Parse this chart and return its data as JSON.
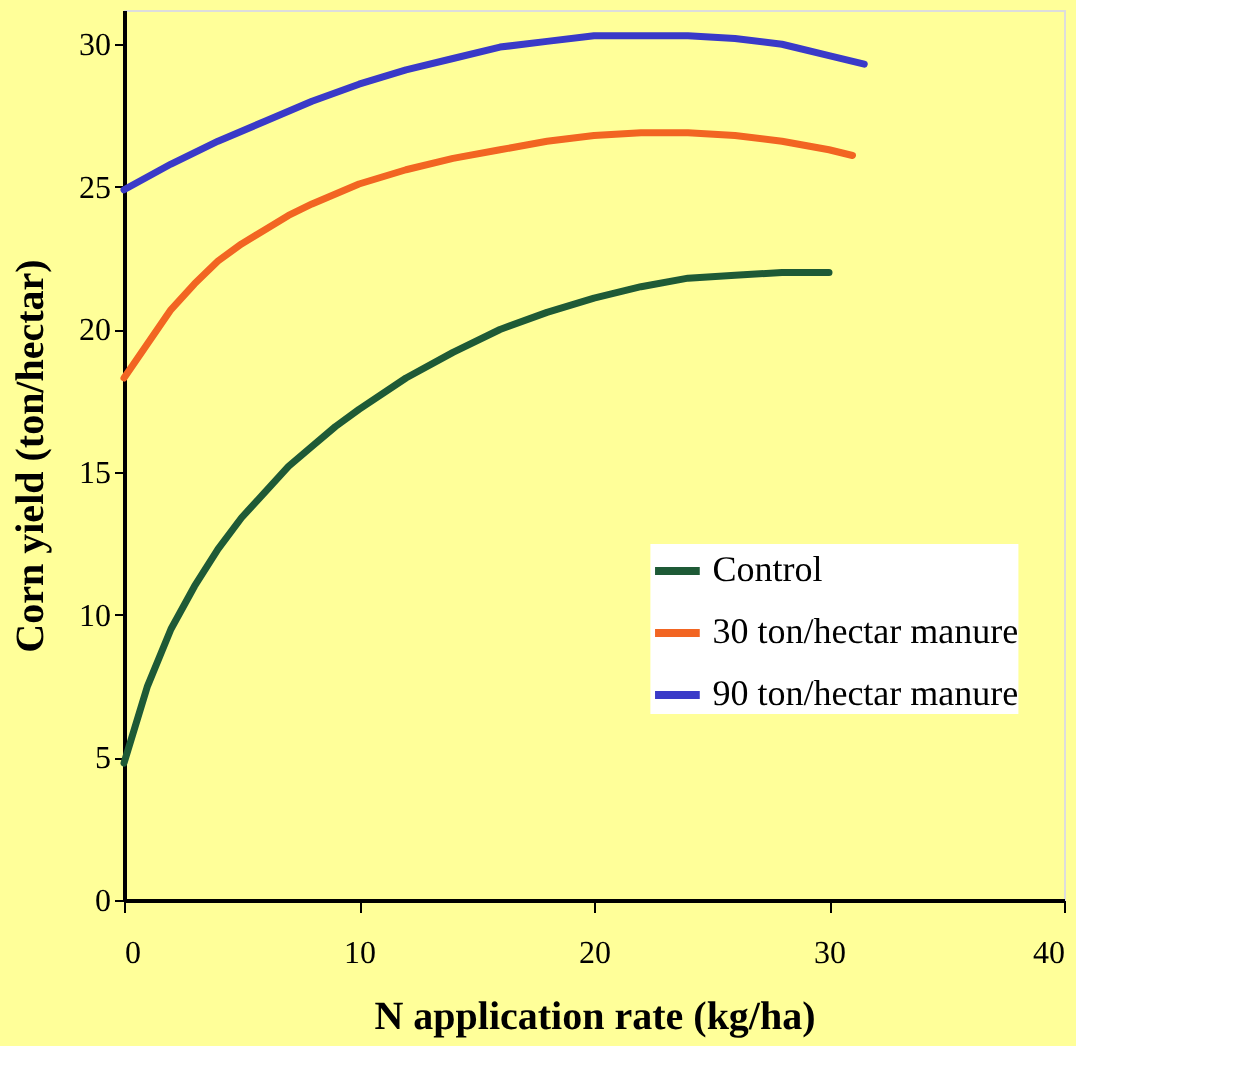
{
  "chart_data": {
    "type": "line",
    "xlabel": "N application rate (kg/ha)",
    "ylabel": "Corn yield (ton/hectar)",
    "xlim": [
      0,
      40
    ],
    "xticks": [
      0,
      10,
      20,
      30,
      40
    ],
    "ylim": [
      0,
      31.2
    ],
    "yticks": [
      0,
      5,
      10,
      15,
      20,
      25,
      30
    ],
    "grid": false,
    "legend": "right",
    "marker": "none",
    "line_style": "solid",
    "series": [
      {
        "name": "Control",
        "color": "#1e5a36",
        "x": [
          0,
          1,
          2,
          3,
          4,
          5,
          6,
          7,
          8,
          9,
          10,
          12,
          14,
          16,
          18,
          20,
          22,
          24,
          26,
          28,
          30
        ],
        "values": [
          4.8,
          7.5,
          9.5,
          11,
          12.3,
          13.4,
          14.3,
          15.2,
          15.9,
          16.6,
          17.2,
          18.3,
          19.2,
          20,
          20.6,
          21.1,
          21.5,
          21.8,
          21.9,
          22,
          22
        ]
      },
      {
        "name": "30 ton/hectar manure",
        "color": "#f26522",
        "x": [
          0,
          1,
          2,
          3,
          4,
          5,
          6,
          7,
          8,
          10,
          12,
          14,
          16,
          18,
          20,
          22,
          24,
          26,
          28,
          30,
          31
        ],
        "values": [
          18.3,
          19.5,
          20.7,
          21.6,
          22.4,
          23,
          23.5,
          24,
          24.4,
          25.1,
          25.6,
          26,
          26.3,
          26.6,
          26.8,
          26.9,
          26.9,
          26.8,
          26.6,
          26.3,
          26.1
        ]
      },
      {
        "name": "90 ton/hectar manure",
        "color": "#3a3ac8",
        "x": [
          0,
          2,
          4,
          6,
          8,
          10,
          12,
          14,
          16,
          18,
          20,
          22,
          24,
          26,
          28,
          30,
          31.5
        ],
        "values": [
          24.9,
          25.8,
          26.6,
          27.3,
          28,
          28.6,
          29.1,
          29.5,
          29.9,
          30.1,
          30.3,
          30.3,
          30.3,
          30.2,
          30,
          29.6,
          29.3
        ]
      }
    ]
  }
}
